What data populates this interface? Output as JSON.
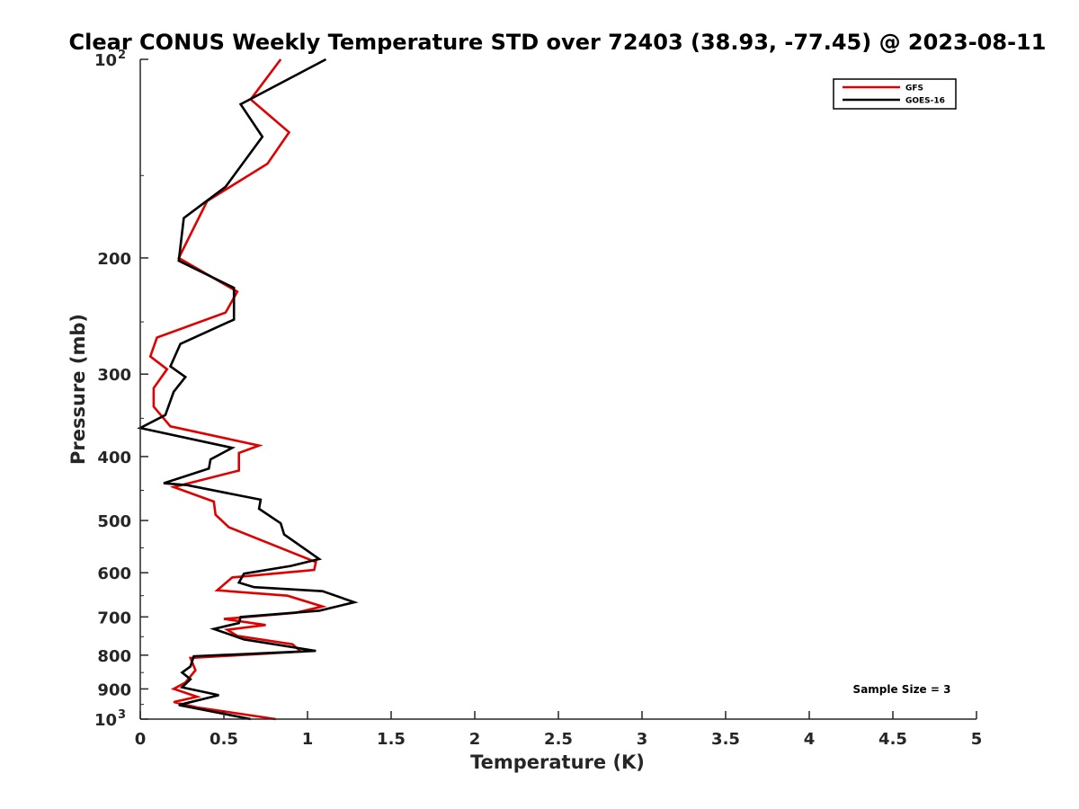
{
  "chart_data": {
    "type": "line",
    "title": "Clear CONUS Weekly Temperature STD over 72403 (38.93, -77.45) @ 2023-08-11",
    "xlabel": "Temperature (K)",
    "ylabel": "Pressure (mb)",
    "xlim": [
      0,
      5
    ],
    "ylim": [
      100,
      1000
    ],
    "y_scale": "log",
    "y_reversed": true,
    "x_ticks": [
      0,
      0.5,
      1,
      1.5,
      2,
      2.5,
      3,
      3.5,
      4,
      4.5,
      5
    ],
    "x_tick_labels": [
      "0",
      "0.5",
      "1",
      "1.5",
      "2",
      "2.5",
      "3",
      "3.5",
      "4",
      "4.5",
      "5"
    ],
    "y_ticks": [
      {
        "value": 100,
        "base": "10",
        "exp": "2"
      },
      {
        "value": 200,
        "label": "200"
      },
      {
        "value": 300,
        "label": "300"
      },
      {
        "value": 400,
        "label": "400"
      },
      {
        "value": 500,
        "label": "500"
      },
      {
        "value": 600,
        "label": "600"
      },
      {
        "value": 700,
        "label": "700"
      },
      {
        "value": 800,
        "label": "800"
      },
      {
        "value": 900,
        "label": "900"
      },
      {
        "value": 1000,
        "base": "10",
        "exp": "3"
      }
    ],
    "grid": false,
    "legend_position": "top-right",
    "annotation": "Sample Size = 3",
    "series": [
      {
        "name": "GFS",
        "color": "#e00000",
        "points": [
          [
            0.84,
            100
          ],
          [
            0.66,
            115
          ],
          [
            0.89,
            129
          ],
          [
            0.76,
            144
          ],
          [
            0.4,
            164
          ],
          [
            0.23,
            200
          ],
          [
            0.58,
            225
          ],
          [
            0.51,
            242
          ],
          [
            0.1,
            264
          ],
          [
            0.06,
            282
          ],
          [
            0.16,
            295
          ],
          [
            0.08,
            315
          ],
          [
            0.08,
            336
          ],
          [
            0.18,
            360
          ],
          [
            0.71,
            385
          ],
          [
            0.59,
            395
          ],
          [
            0.59,
            420
          ],
          [
            0.2,
            445
          ],
          [
            0.44,
            468
          ],
          [
            0.45,
            490
          ],
          [
            0.53,
            512
          ],
          [
            1.05,
            578
          ],
          [
            1.04,
            594
          ],
          [
            0.55,
            610
          ],
          [
            0.46,
            638
          ],
          [
            0.88,
            650
          ],
          [
            1.09,
            675
          ],
          [
            0.93,
            690
          ],
          [
            0.5,
            705
          ],
          [
            0.75,
            720
          ],
          [
            0.52,
            732
          ],
          [
            0.58,
            748
          ],
          [
            0.91,
            770
          ],
          [
            0.96,
            790
          ],
          [
            0.3,
            808
          ],
          [
            0.33,
            843
          ],
          [
            0.27,
            880
          ],
          [
            0.2,
            900
          ],
          [
            0.34,
            925
          ],
          [
            0.2,
            942
          ],
          [
            0.34,
            960
          ],
          [
            0.81,
            1000
          ]
        ]
      },
      {
        "name": "GOES-16",
        "color": "#000000",
        "points": [
          [
            1.11,
            100
          ],
          [
            0.6,
            117
          ],
          [
            0.73,
            131
          ],
          [
            0.51,
            156
          ],
          [
            0.26,
            174
          ],
          [
            0.23,
            202
          ],
          [
            0.56,
            222
          ],
          [
            0.56,
            248
          ],
          [
            0.24,
            270
          ],
          [
            0.18,
            292
          ],
          [
            0.27,
            303
          ],
          [
            0.2,
            319
          ],
          [
            0.15,
            346
          ],
          [
            0.0,
            362
          ],
          [
            0.55,
            388
          ],
          [
            0.42,
            404
          ],
          [
            0.41,
            417
          ],
          [
            0.14,
            439
          ],
          [
            0.28,
            442
          ],
          [
            0.72,
            465
          ],
          [
            0.71,
            480
          ],
          [
            0.84,
            505
          ],
          [
            0.86,
            525
          ],
          [
            1.07,
            572
          ],
          [
            0.9,
            586
          ],
          [
            0.62,
            602
          ],
          [
            0.59,
            621
          ],
          [
            0.68,
            631
          ],
          [
            1.09,
            640
          ],
          [
            1.28,
            665
          ],
          [
            1.07,
            685
          ],
          [
            0.6,
            700
          ],
          [
            0.59,
            715
          ],
          [
            0.44,
            730
          ],
          [
            0.62,
            757
          ],
          [
            1.05,
            788
          ],
          [
            0.32,
            803
          ],
          [
            0.3,
            832
          ],
          [
            0.25,
            850
          ],
          [
            0.3,
            870
          ],
          [
            0.27,
            885
          ],
          [
            0.25,
            895
          ],
          [
            0.47,
            920
          ],
          [
            0.23,
            952
          ],
          [
            0.66,
            1000
          ]
        ]
      }
    ]
  }
}
